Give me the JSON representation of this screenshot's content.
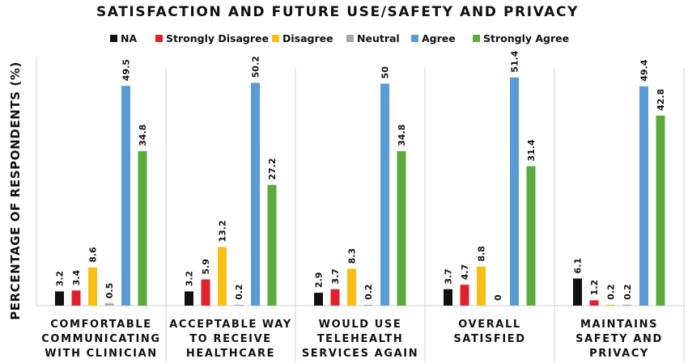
{
  "chart_data": {
    "type": "bar",
    "title": "SATISFACTION AND FUTURE USE/SAFETY AND PRIVACY",
    "ylabel": "PERCENTAGE OF RESPONDENTS (%)",
    "xlabel": "",
    "ylim": [
      0,
      55
    ],
    "grid": false,
    "legend_position": "top",
    "categories": [
      [
        "COMFORTABLE",
        "COMMUNICATING",
        "WITH CLINICIAN"
      ],
      [
        "ACCEPTABLE WAY",
        "TO RECEIVE",
        "HEALTHCARE"
      ],
      [
        "WOULD USE",
        "TELEHEALTH",
        "SERVICES AGAIN"
      ],
      [
        "OVERALL",
        "SATISFIED"
      ],
      [
        "MAINTAINS",
        "SAFETY AND",
        "PRIVACY"
      ]
    ],
    "series": [
      {
        "name": "NA",
        "color": "#111111",
        "values": [
          3.2,
          3.2,
          2.9,
          3.7,
          6.1
        ]
      },
      {
        "name": "Strongly Disagree",
        "color": "#e0202a",
        "values": [
          3.4,
          5.9,
          3.7,
          4.7,
          1.2
        ]
      },
      {
        "name": "Disagree",
        "color": "#f8be14",
        "values": [
          8.6,
          13.2,
          8.3,
          8.8,
          0.2
        ]
      },
      {
        "name": "Neutral",
        "color": "#a6a6a6",
        "values": [
          0.5,
          0.2,
          0.2,
          0,
          0.2
        ]
      },
      {
        "name": "Agree",
        "color": "#5b9bd5",
        "values": [
          49.5,
          50.2,
          50,
          51.4,
          49.4
        ]
      },
      {
        "name": "Strongly Agree",
        "color": "#5aab3c",
        "values": [
          34.8,
          27.2,
          34.8,
          31.4,
          42.8
        ]
      }
    ]
  }
}
